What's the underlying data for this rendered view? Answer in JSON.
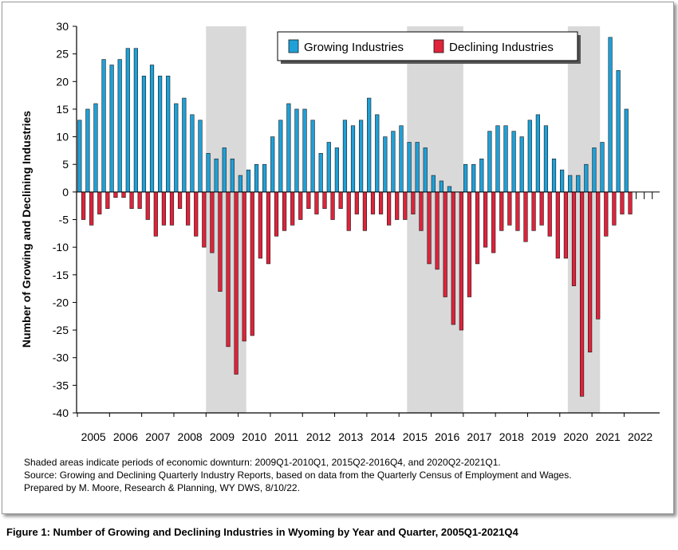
{
  "chart_data": {
    "type": "bar",
    "ylabel": "Number of Growing and Declining Industries",
    "ylim": [
      -40,
      30
    ],
    "yticks": [
      30,
      25,
      20,
      15,
      10,
      5,
      0,
      -5,
      -10,
      -15,
      -20,
      -25,
      -30,
      -35,
      -40
    ],
    "year_labels": [
      "2005",
      "2006",
      "2007",
      "2008",
      "2009",
      "2010",
      "2011",
      "2012",
      "2013",
      "2014",
      "2015",
      "2016",
      "2017",
      "2018",
      "2019",
      "2020",
      "2021",
      "2022"
    ],
    "start_year": 2005,
    "quarters_per_year": 4,
    "total_quarters": 72,
    "legend": {
      "placement": "top-center"
    },
    "shaded_periods": [
      {
        "start": "2009Q1",
        "end": "2010Q1"
      },
      {
        "start": "2015Q2",
        "end": "2016Q4"
      },
      {
        "start": "2020Q2",
        "end": "2021Q1"
      }
    ],
    "series": [
      {
        "name": "Growing Industries",
        "color": "#1ea0d8",
        "values": [
          13,
          15,
          16,
          24,
          23,
          24,
          26,
          26,
          21,
          23,
          21,
          21,
          16,
          17,
          14,
          13,
          7,
          6,
          8,
          6,
          3,
          4,
          5,
          5,
          10,
          13,
          16,
          15,
          15,
          13,
          7,
          9,
          8,
          13,
          12,
          13,
          17,
          14,
          10,
          11,
          12,
          9,
          9,
          8,
          3,
          2,
          1,
          0,
          5,
          5,
          6,
          11,
          12,
          12,
          11,
          10,
          13,
          14,
          12,
          6,
          4,
          3,
          3,
          5,
          8,
          9,
          28,
          22,
          15
        ]
      },
      {
        "name": "Declining Industries",
        "color": "#e0223a",
        "values": [
          -5,
          -6,
          -4,
          -3,
          -1,
          -1,
          -3,
          -3,
          -5,
          -8,
          -6,
          -6,
          -3,
          -6,
          -8,
          -10,
          -11,
          -18,
          -28,
          -33,
          -27,
          -26,
          -12,
          -13,
          -8,
          -7,
          -6,
          -5,
          -3,
          -4,
          -3,
          -5,
          -3,
          -7,
          -4,
          -7,
          -4,
          -4,
          -6,
          -5,
          -5,
          -4,
          -7,
          -13,
          -14,
          -19,
          -24,
          -25,
          -19,
          -13,
          -10,
          -11,
          -7,
          -6,
          -7,
          -9,
          -7,
          -6,
          -8,
          -12,
          -12,
          -17,
          -37,
          -29,
          -23,
          -8,
          -6,
          -4,
          -4
        ]
      }
    ]
  },
  "notes": [
    "Shaded areas indicate periods of economic downturn: 2009Q1-2010Q1, 2015Q2-2016Q4, and 2020Q2-2021Q1.",
    "Source: Growing and Declining Quarterly Industry Reports, based on data from the Quarterly Census of Employment and Wages.",
    "Prepared by M. Moore, Research & Planning, WY DWS, 8/10/22."
  ],
  "caption": "Figure 1: Number of Growing and Declining Industries in Wyoming by Year and Quarter, 2005Q1-2021Q4"
}
